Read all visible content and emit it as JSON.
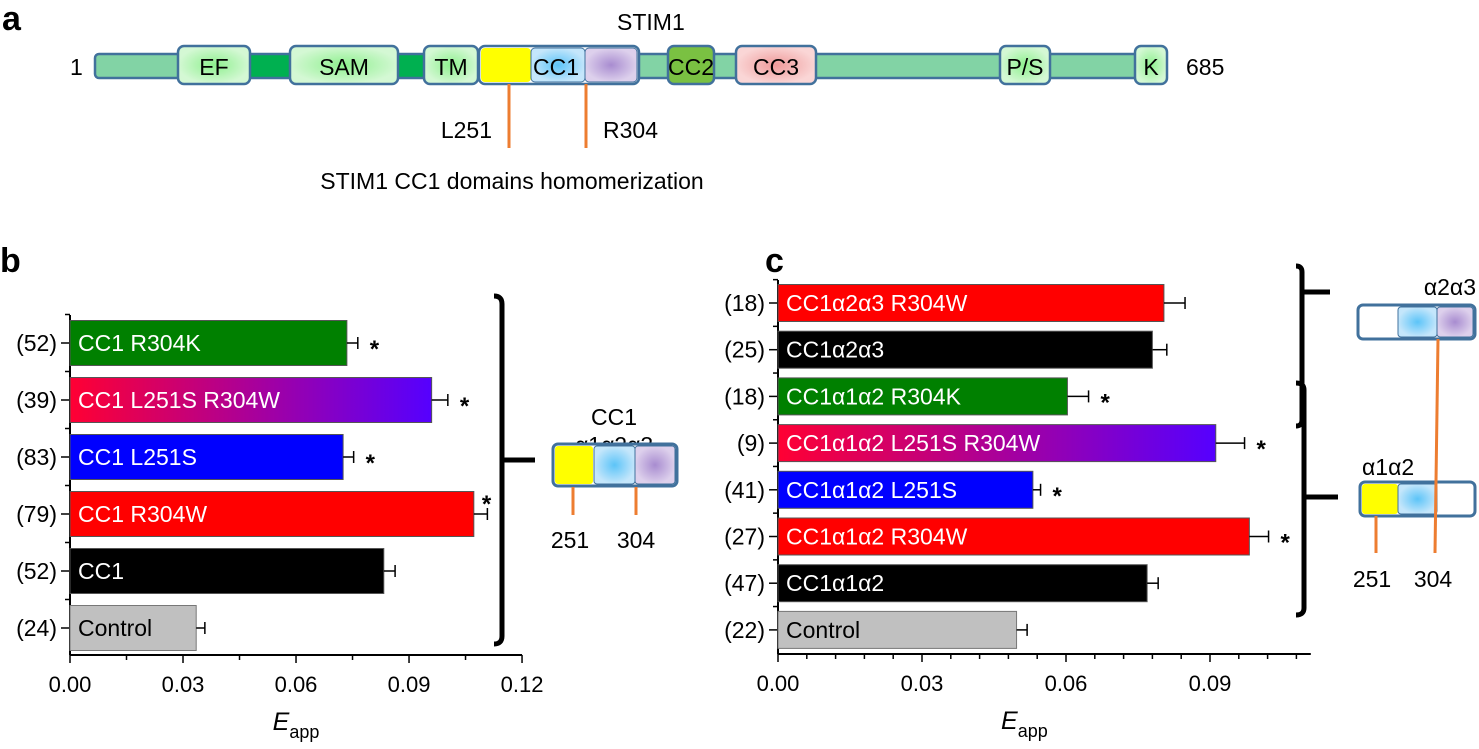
{
  "panel_letters": {
    "a": "a",
    "b": "b",
    "c": "c"
  },
  "domain_map": {
    "protein": "STIM1",
    "start": "1",
    "end": "685",
    "domains": [
      "EF",
      "SAM",
      "TM",
      "CC1",
      "CC2",
      "CC3",
      "P/S",
      "K"
    ],
    "residue_marks": [
      "L251",
      "R304"
    ],
    "caption": "STIM1 CC1 domains homomerization",
    "colors": {
      "linker": "#82d3a5",
      "linker_dark": "#00b050",
      "domain_light": "#c8f5c8",
      "cc1_a1": "#ffff00",
      "cc1_a2": "#a8dcf8",
      "cc1_a3": "#c8b4e0",
      "cc2": "#7ac142",
      "cc3": "#f4c0c0",
      "outline": "#41719c",
      "marker": "#ed7d31"
    }
  },
  "diagram_b": {
    "title_line1": "CC1",
    "title_line2": "α1α2α3",
    "marks": [
      "251",
      "304"
    ]
  },
  "diagram_c": {
    "top_label": "α2α3",
    "bottom_label": "α1α2",
    "marks": [
      "251",
      "304"
    ]
  },
  "chart_data": [
    {
      "type": "bar",
      "orientation": "horizontal",
      "panel": "b",
      "categories": [
        "CC1 R304K",
        "CC1 L251S R304W",
        "CC1 L251S",
        "CC1 R304W",
        "CC1",
        "Control"
      ],
      "n_labels": [
        "(52)",
        "(39)",
        "(83)",
        "(79)",
        "(52)",
        "(24)"
      ],
      "values": [
        0.0735,
        0.096,
        0.0725,
        0.1072,
        0.0833,
        0.0335
      ],
      "errors": [
        0.0029,
        0.0043,
        0.0028,
        0.0036,
        0.003,
        0.0023
      ],
      "significant": [
        true,
        true,
        true,
        true,
        false,
        false
      ],
      "significance_mark": "*",
      "colors": [
        "#008000",
        "gradient",
        "#0000ff",
        "#ff0000",
        "#000000",
        "#c0c0c0"
      ],
      "gradient": [
        "#ff0033",
        "#5500ff"
      ],
      "xlabel": "E",
      "xlabel_sub": "app",
      "xlim": [
        0,
        0.12
      ],
      "xticks": [
        "0.00",
        "0.03",
        "0.06",
        "0.09",
        "0.12"
      ],
      "grid": false
    },
    {
      "type": "bar",
      "orientation": "horizontal",
      "panel": "c",
      "categories": [
        "CC1α2α3 R304W",
        "CC1α2α3",
        "CC1α1α2 R304K",
        "CC1α1α2 L251S R304W",
        "CC1α1α2 L251S",
        "CC1α1α2 R304W",
        "CC1α1α2",
        "Control"
      ],
      "n_labels": [
        "(18)",
        "(25)",
        "(18)",
        "(9)",
        "(41)",
        "(27)",
        "(47)",
        "(22)"
      ],
      "values": [
        0.0804,
        0.078,
        0.0603,
        0.0912,
        0.0531,
        0.0982,
        0.0769,
        0.0497
      ],
      "errors": [
        0.0044,
        0.003,
        0.0044,
        0.006,
        0.0016,
        0.004,
        0.0023,
        0.0022
      ],
      "significant": [
        false,
        false,
        true,
        true,
        true,
        true,
        false,
        false
      ],
      "significance_mark": "*",
      "colors": [
        "#ff0000",
        "#000000",
        "#008000",
        "gradient",
        "#0000ff",
        "#ff0000",
        "#000000",
        "#c0c0c0"
      ],
      "gradient": [
        "#ff0033",
        "#5500ff"
      ],
      "xlabel": "E",
      "xlabel_sub": "app",
      "xlim": [
        0,
        0.111
      ],
      "xticks": [
        "0.00",
        "0.03",
        "0.06",
        "0.09"
      ],
      "grid": false
    }
  ]
}
